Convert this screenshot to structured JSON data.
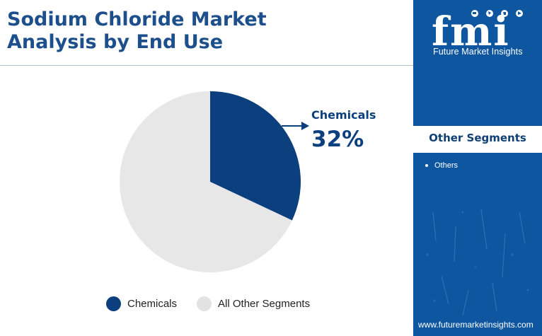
{
  "header": {
    "title_line1": "Sodium Chloride Market",
    "title_line2": "Analysis by End Use"
  },
  "brand": {
    "logo_text": "fmi",
    "name": "Future Market Insights",
    "website": "www.futuremarketinsights.com"
  },
  "sidebar": {
    "heading": "Other Segments",
    "items": [
      "Others"
    ]
  },
  "colors": {
    "brand_blue": "#0f56a0",
    "title_blue": "#1d4f8c",
    "chemicals": "#0c3f7e",
    "other_segments": "#e7e7e7"
  },
  "chart_data": {
    "type": "pie",
    "slices": [
      {
        "label": "Chemicals",
        "value": 32,
        "color": "#0c3f7e"
      },
      {
        "label": "All Other Segments",
        "value": 68,
        "color": "#e7e7e7"
      }
    ],
    "annotation": {
      "label": "Chemicals",
      "value_text": "32%"
    },
    "legend": {
      "position": "bottom",
      "entries": [
        {
          "label": "Chemicals",
          "color": "#0c3f7e"
        },
        {
          "label": "All Other Segments",
          "color": "#e7e7e7"
        }
      ]
    }
  }
}
